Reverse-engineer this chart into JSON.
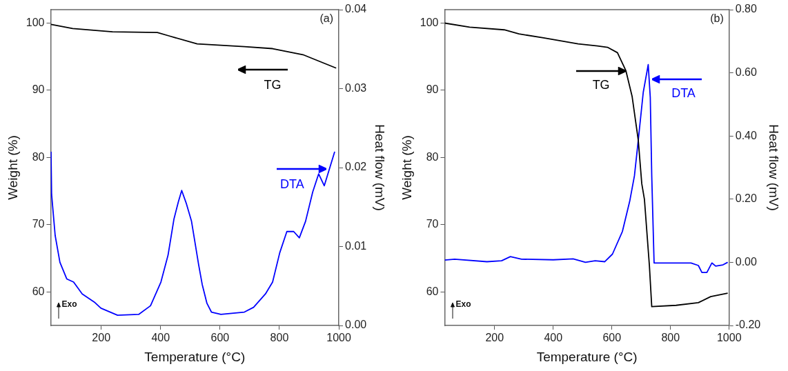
{
  "chart_data": [
    {
      "type": "line",
      "title": "(a)",
      "xlabel": "Temperature (°C)",
      "ylabel": "Weight (%)",
      "y2label": "Heat flow (mV)",
      "xlim": [
        30,
        1000
      ],
      "xticks": [
        200,
        400,
        600,
        800,
        1000
      ],
      "ylim": [
        55,
        102
      ],
      "yticks": [
        60,
        70,
        80,
        90,
        100
      ],
      "y2lim": [
        0,
        0.04
      ],
      "y2ticks": [
        {
          "value": 0,
          "label": "0.00"
        },
        {
          "value": 0.01,
          "label": "0.01"
        },
        {
          "value": 0.02,
          "label": "0.02"
        },
        {
          "value": 0.03,
          "label": "0.03"
        },
        {
          "value": 0.04,
          "label": "0.04"
        }
      ],
      "grid": false,
      "legend": false,
      "marker": "none",
      "line_style": "solid",
      "annotations": [
        "TG",
        "DTA",
        "Exo"
      ],
      "series": [
        {
          "color": "#000000",
          "x": [
            31,
            104,
            238,
            389,
            428,
            523,
            682,
            777,
            879,
            991
          ],
          "values": [
            99.8,
            99.2,
            98.7,
            98.6,
            98.1,
            96.9,
            96.5,
            96.2,
            95.3,
            93.3
          ]
        },
        {
          "color": "#0000ff",
          "axis": "y2",
          "x": [
            31,
            33,
            45,
            61,
            84,
            107,
            136,
            179,
            199,
            255,
            326,
            366,
            401,
            425,
            445,
            460,
            471,
            487,
            504,
            528,
            540,
            556,
            571,
            603,
            682,
            713,
            753,
            777,
            801,
            825,
            848,
            867,
            888,
            912,
            932,
            951,
            986
          ],
          "values": [
            0.022,
            0.0166,
            0.0114,
            0.008,
            0.0059,
            0.0055,
            0.004,
            0.0029,
            0.0022,
            0.0013,
            0.0014,
            0.0025,
            0.0055,
            0.0089,
            0.0135,
            0.0157,
            0.0171,
            0.0154,
            0.0132,
            0.0077,
            0.0052,
            0.0028,
            0.0017,
            0.0014,
            0.0017,
            0.0023,
            0.004,
            0.0055,
            0.0092,
            0.0119,
            0.0119,
            0.0111,
            0.0132,
            0.0169,
            0.0192,
            0.0177,
            0.022
          ]
        }
      ]
    },
    {
      "type": "line",
      "title": "(b)",
      "xlabel": "Temperature (°C)",
      "ylabel": "Weight (%)",
      "y2label": "Heat flow (mV)",
      "xlim": [
        30,
        1000
      ],
      "xticks": [
        200,
        400,
        600,
        800,
        1000
      ],
      "ylim": [
        55,
        102
      ],
      "yticks": [
        60,
        70,
        80,
        90,
        100
      ],
      "y2lim": [
        -0.2,
        0.8
      ],
      "y2ticks": [
        {
          "value": -0.2,
          "label": "-0.20"
        },
        {
          "value": 0,
          "label": "0.00"
        },
        {
          "value": 0.2,
          "label": "0.20"
        },
        {
          "value": 0.4,
          "label": "0.40"
        },
        {
          "value": 0.6,
          "label": "0.60"
        },
        {
          "value": 0.8,
          "label": "0.80"
        }
      ],
      "grid": false,
      "legend": false,
      "marker": "none",
      "line_style": "solid",
      "annotations": [
        {
          "text": "TG",
          "x": 648,
          "y": 92.9
        },
        {
          "text": "DTA",
          "x": 736,
          "y": 91.6
        },
        "Exo"
      ],
      "series": [
        {
          "color": "#000000",
          "x": [
            30,
            115,
            233,
            283,
            367,
            485,
            551,
            585,
            619,
            648,
            669,
            690,
            702,
            711,
            728,
            736,
            819,
            895,
            937,
            995
          ],
          "values": [
            100,
            99.4,
            99.0,
            98.4,
            97.8,
            96.9,
            96.6,
            96.4,
            95.6,
            92.9,
            89.1,
            82.6,
            76.1,
            73.8,
            63.9,
            57.8,
            58.0,
            58.4,
            59.3,
            59.8
          ]
        },
        {
          "color": "#0000ff",
          "axis": "y2",
          "x": [
            30,
            64,
            174,
            224,
            254,
            292,
            400,
            468,
            510,
            543,
            576,
            602,
            636,
            661,
            677,
            690,
            707,
            724,
            731,
            736,
            744,
            819,
            870,
            895,
            907,
            924,
            941,
            954,
            979,
            995
          ],
          "values": [
            0.007,
            0.01,
            0.002,
            0.005,
            0.018,
            0.01,
            0.008,
            0.011,
            0,
            0.005,
            0.002,
            0.026,
            0.098,
            0.194,
            0.274,
            0.386,
            0.538,
            0.626,
            0.522,
            0.274,
            -0.002,
            -0.002,
            -0.002,
            -0.01,
            -0.032,
            -0.032,
            -0.002,
            -0.012,
            -0.008,
            0
          ]
        }
      ]
    }
  ]
}
